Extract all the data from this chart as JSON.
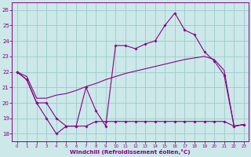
{
  "xlabel": "Windchill (Refroidissement éolien,°C)",
  "background_color": "#cce8e8",
  "grid_color": "#99cccc",
  "line_color": "#880088",
  "x_ticks": [
    0,
    1,
    2,
    3,
    4,
    5,
    6,
    7,
    8,
    9,
    10,
    11,
    12,
    13,
    14,
    15,
    16,
    17,
    18,
    19,
    20,
    21,
    22,
    23
  ],
  "y_ticks": [
    18,
    19,
    20,
    21,
    22,
    23,
    24,
    25,
    26
  ],
  "xlim": [
    -0.5,
    23.5
  ],
  "ylim": [
    17.5,
    26.5
  ],
  "line1_y": [
    22.0,
    21.5,
    20.0,
    19.0,
    18.0,
    18.5,
    18.5,
    21.0,
    19.5,
    18.5,
    23.7,
    23.7,
    23.5,
    23.8,
    24.0,
    25.0,
    25.8,
    24.7,
    24.4,
    23.3,
    22.7,
    21.8,
    18.5,
    18.6
  ],
  "line2_y": [
    22.0,
    21.7,
    20.3,
    20.3,
    20.5,
    20.6,
    20.8,
    21.05,
    21.25,
    21.5,
    21.7,
    21.9,
    22.05,
    22.2,
    22.35,
    22.5,
    22.65,
    22.8,
    22.9,
    23.0,
    22.8,
    22.1,
    18.5,
    18.6
  ],
  "line3_y": [
    22.0,
    21.5,
    20.0,
    20.0,
    19.0,
    18.5,
    18.5,
    18.5,
    18.8,
    18.8,
    18.8,
    18.8,
    18.8,
    18.8,
    18.8,
    18.8,
    18.8,
    18.8,
    18.8,
    18.8,
    18.8,
    18.8,
    18.5,
    18.6
  ]
}
